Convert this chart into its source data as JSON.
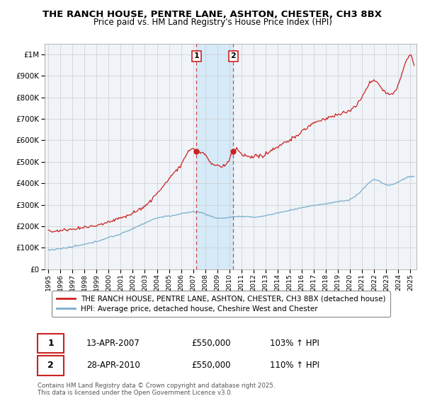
{
  "title": "THE RANCH HOUSE, PENTRE LANE, ASHTON, CHESTER, CH3 8BX",
  "subtitle": "Price paid vs. HM Land Registry's House Price Index (HPI)",
  "red_label": "THE RANCH HOUSE, PENTRE LANE, ASHTON, CHESTER, CH3 8BX (detached house)",
  "blue_label": "HPI: Average price, detached house, Cheshire West and Chester",
  "purchase1_date": "13-APR-2007",
  "purchase1_price": "£550,000",
  "purchase1_hpi": "103% ↑ HPI",
  "purchase2_date": "28-APR-2010",
  "purchase2_price": "£550,000",
  "purchase2_hpi": "110% ↑ HPI",
  "copyright": "Contains HM Land Registry data © Crown copyright and database right 2025.\nThis data is licensed under the Open Government Licence v3.0.",
  "ylim": [
    0,
    1050000
  ],
  "xlim_start": 1994.7,
  "xlim_end": 2025.5,
  "vline1_x": 2007.283,
  "vline2_x": 2010.328,
  "background_color": "#ffffff",
  "plot_bg_color": "#f0f4f8",
  "grid_color": "#cccccc",
  "red_color": "#cc2222",
  "blue_color": "#7aadcc",
  "shade_color": "#d0e8f8"
}
